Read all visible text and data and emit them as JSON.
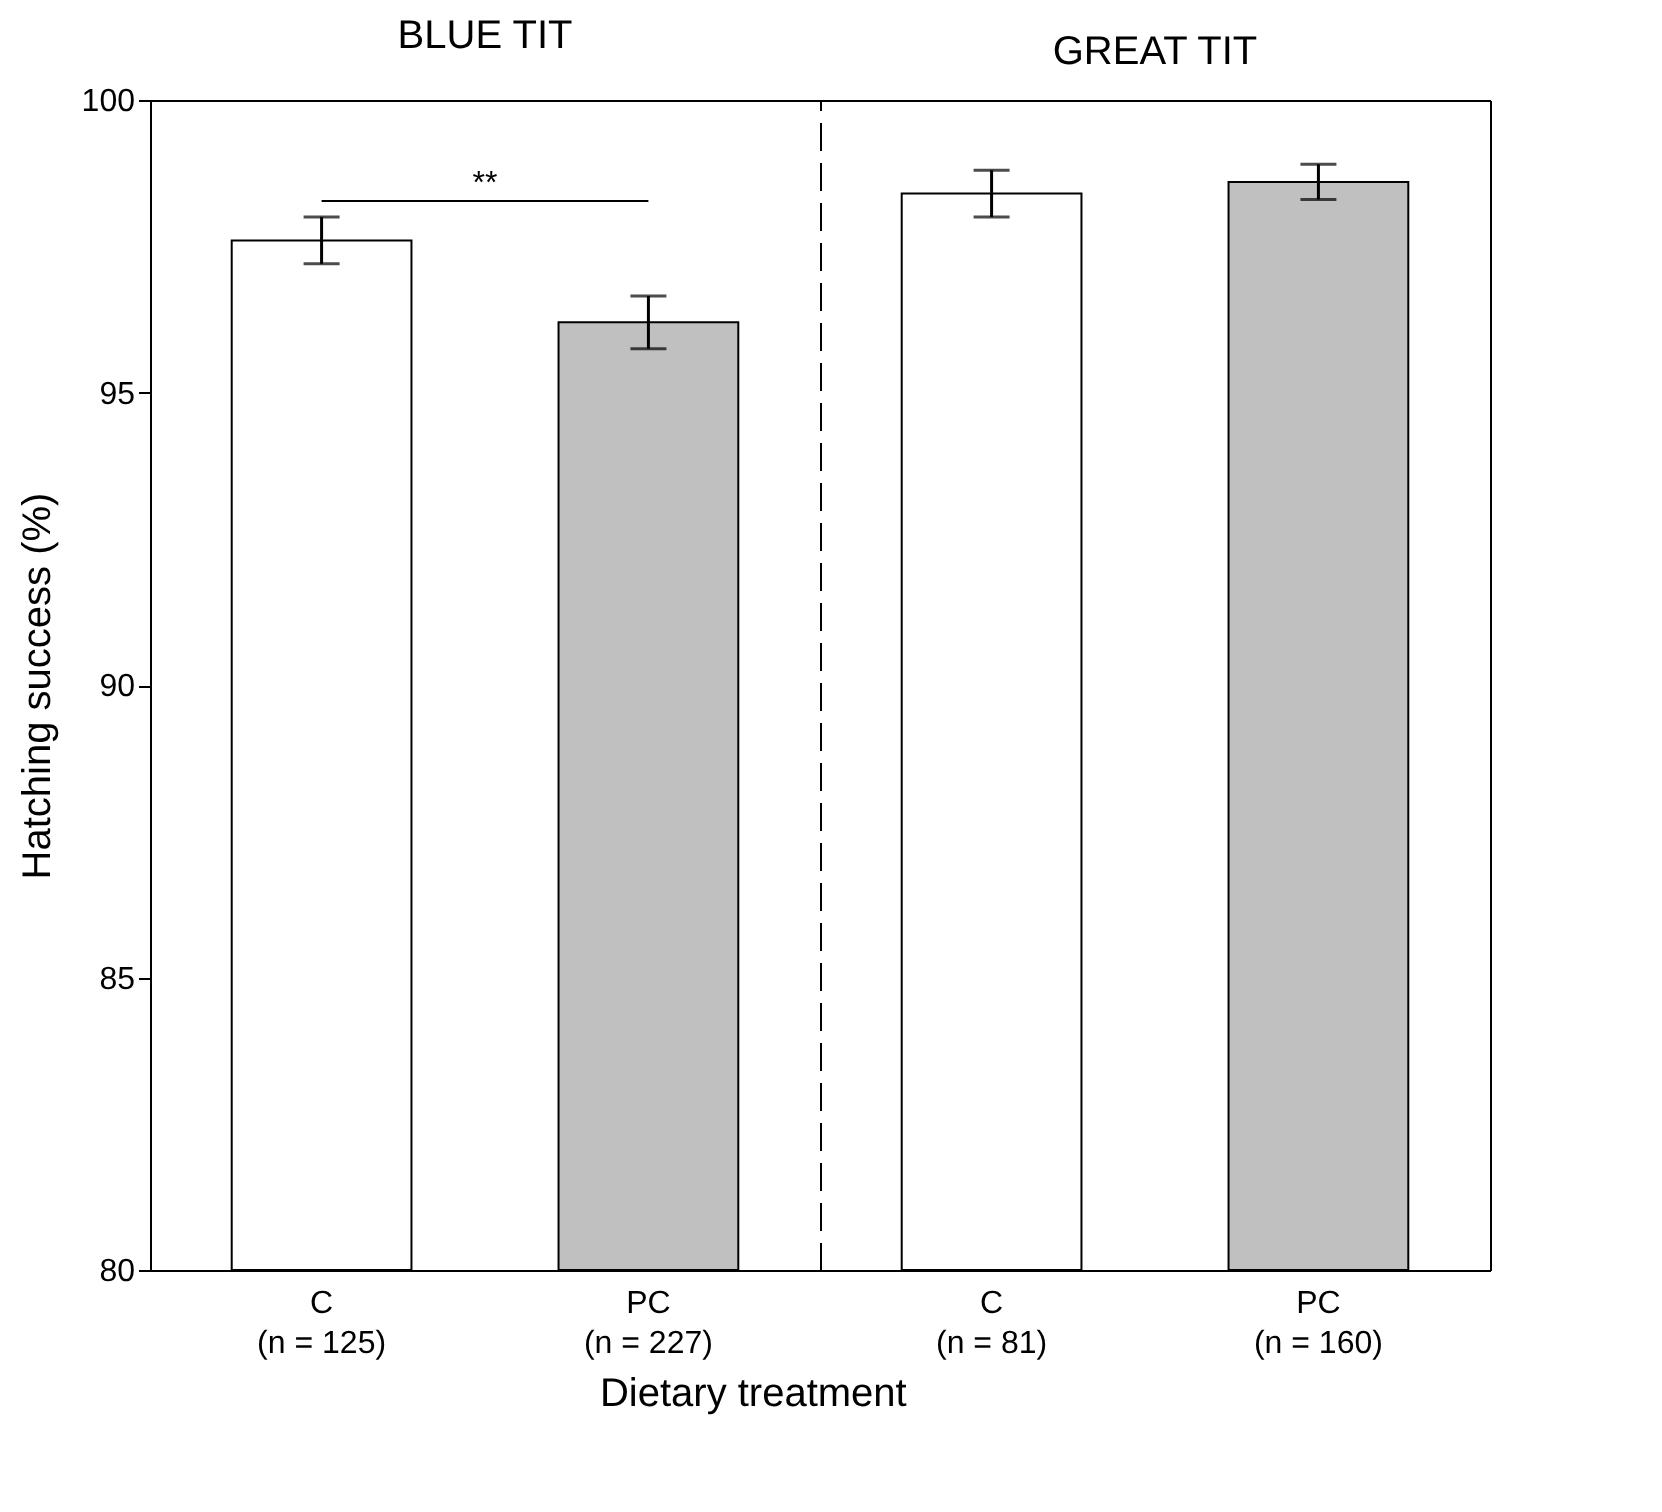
{
  "chart_data": [
    {
      "type": "bar",
      "title": "BLUE TIT",
      "xlabel": "Dietary treatment",
      "ylabel": "Hatching success (%)",
      "categories": [
        "C\n(n = 125)",
        "PC\n(n = 227)"
      ],
      "values": [
        97.6,
        96.2
      ],
      "colors": [
        "#ffffff",
        "#c0c0c0"
      ],
      "errors": [
        0.4,
        0.45
      ],
      "ylim": [
        80,
        100
      ],
      "yticks": [
        80,
        85,
        90,
        95,
        100
      ],
      "annotations": [
        "**"
      ]
    },
    {
      "type": "bar",
      "title": "GREAT TIT",
      "categories": [
        "C\n(n = 81)",
        "PC\n(n = 160)"
      ],
      "values": [
        98.4,
        98.6
      ],
      "colors": [
        "#ffffff",
        "#c0c0c0"
      ],
      "errors": [
        0.4,
        0.3
      ],
      "ylim": [
        80,
        100
      ],
      "yticks": [
        80,
        85,
        90,
        95,
        100
      ],
      "tick_labels": "x"
    }
  ]
}
